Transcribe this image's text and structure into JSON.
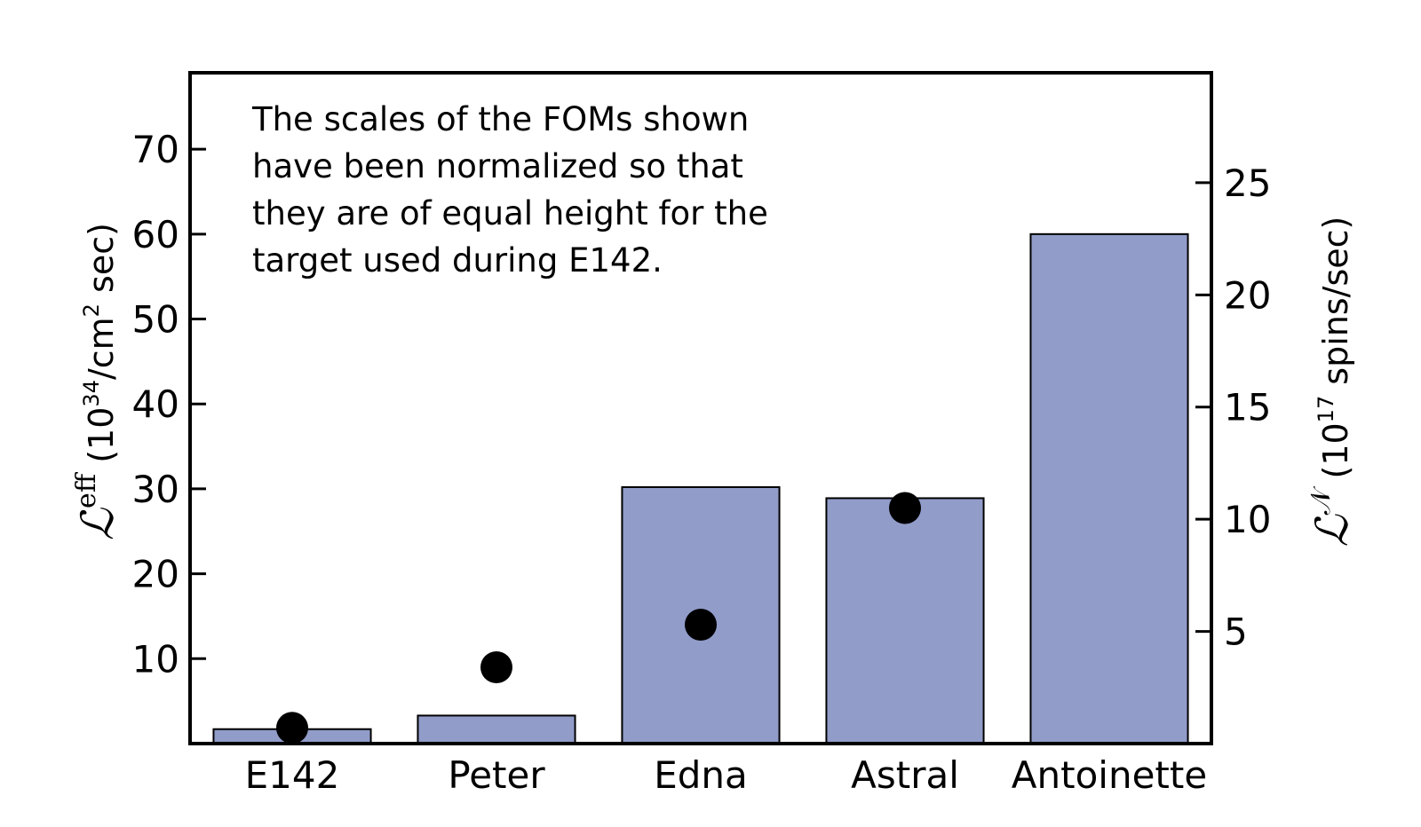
{
  "chart_data": {
    "type": "bar",
    "categories": [
      "E142",
      "Peter",
      "Edna",
      "Astral",
      "Antoinette"
    ],
    "series": [
      {
        "values": [
          1.7,
          3.3,
          30.2,
          28.9,
          60.0
        ],
        "color": "#919cc9"
      },
      {
        "values": [
          0.7,
          3.4,
          5.3,
          10.5,
          null
        ],
        "marker": "circle",
        "color": "#000000"
      }
    ],
    "left_axis": {
      "ylim": [
        0,
        79
      ],
      "ticks": [
        "10",
        "20",
        "30",
        "40",
        "50",
        "60",
        "70"
      ],
      "label": {
        "symbol": "ℒ",
        "superscript": "eff",
        "unit_prefix": "(10",
        "unit_power": "34",
        "unit_mid": "/cm",
        "unit_power2": "2",
        "unit_suffix": " sec)"
      }
    },
    "right_axis": {
      "ylim": [
        0,
        29.9
      ],
      "ticks": [
        "5",
        "10",
        "15",
        "20",
        "25"
      ],
      "label": {
        "symbol": "ℒ",
        "superscript": "𝒩",
        "unit_prefix": "(10",
        "unit_power": "17",
        "unit_suffix": " spins/sec)"
      }
    },
    "annotation": "The scales of the FOMs shown\nhave been normalized so that\nthey are of equal height for the\ntarget used during E142.",
    "grid": false,
    "bar_color": "#919cc9"
  }
}
